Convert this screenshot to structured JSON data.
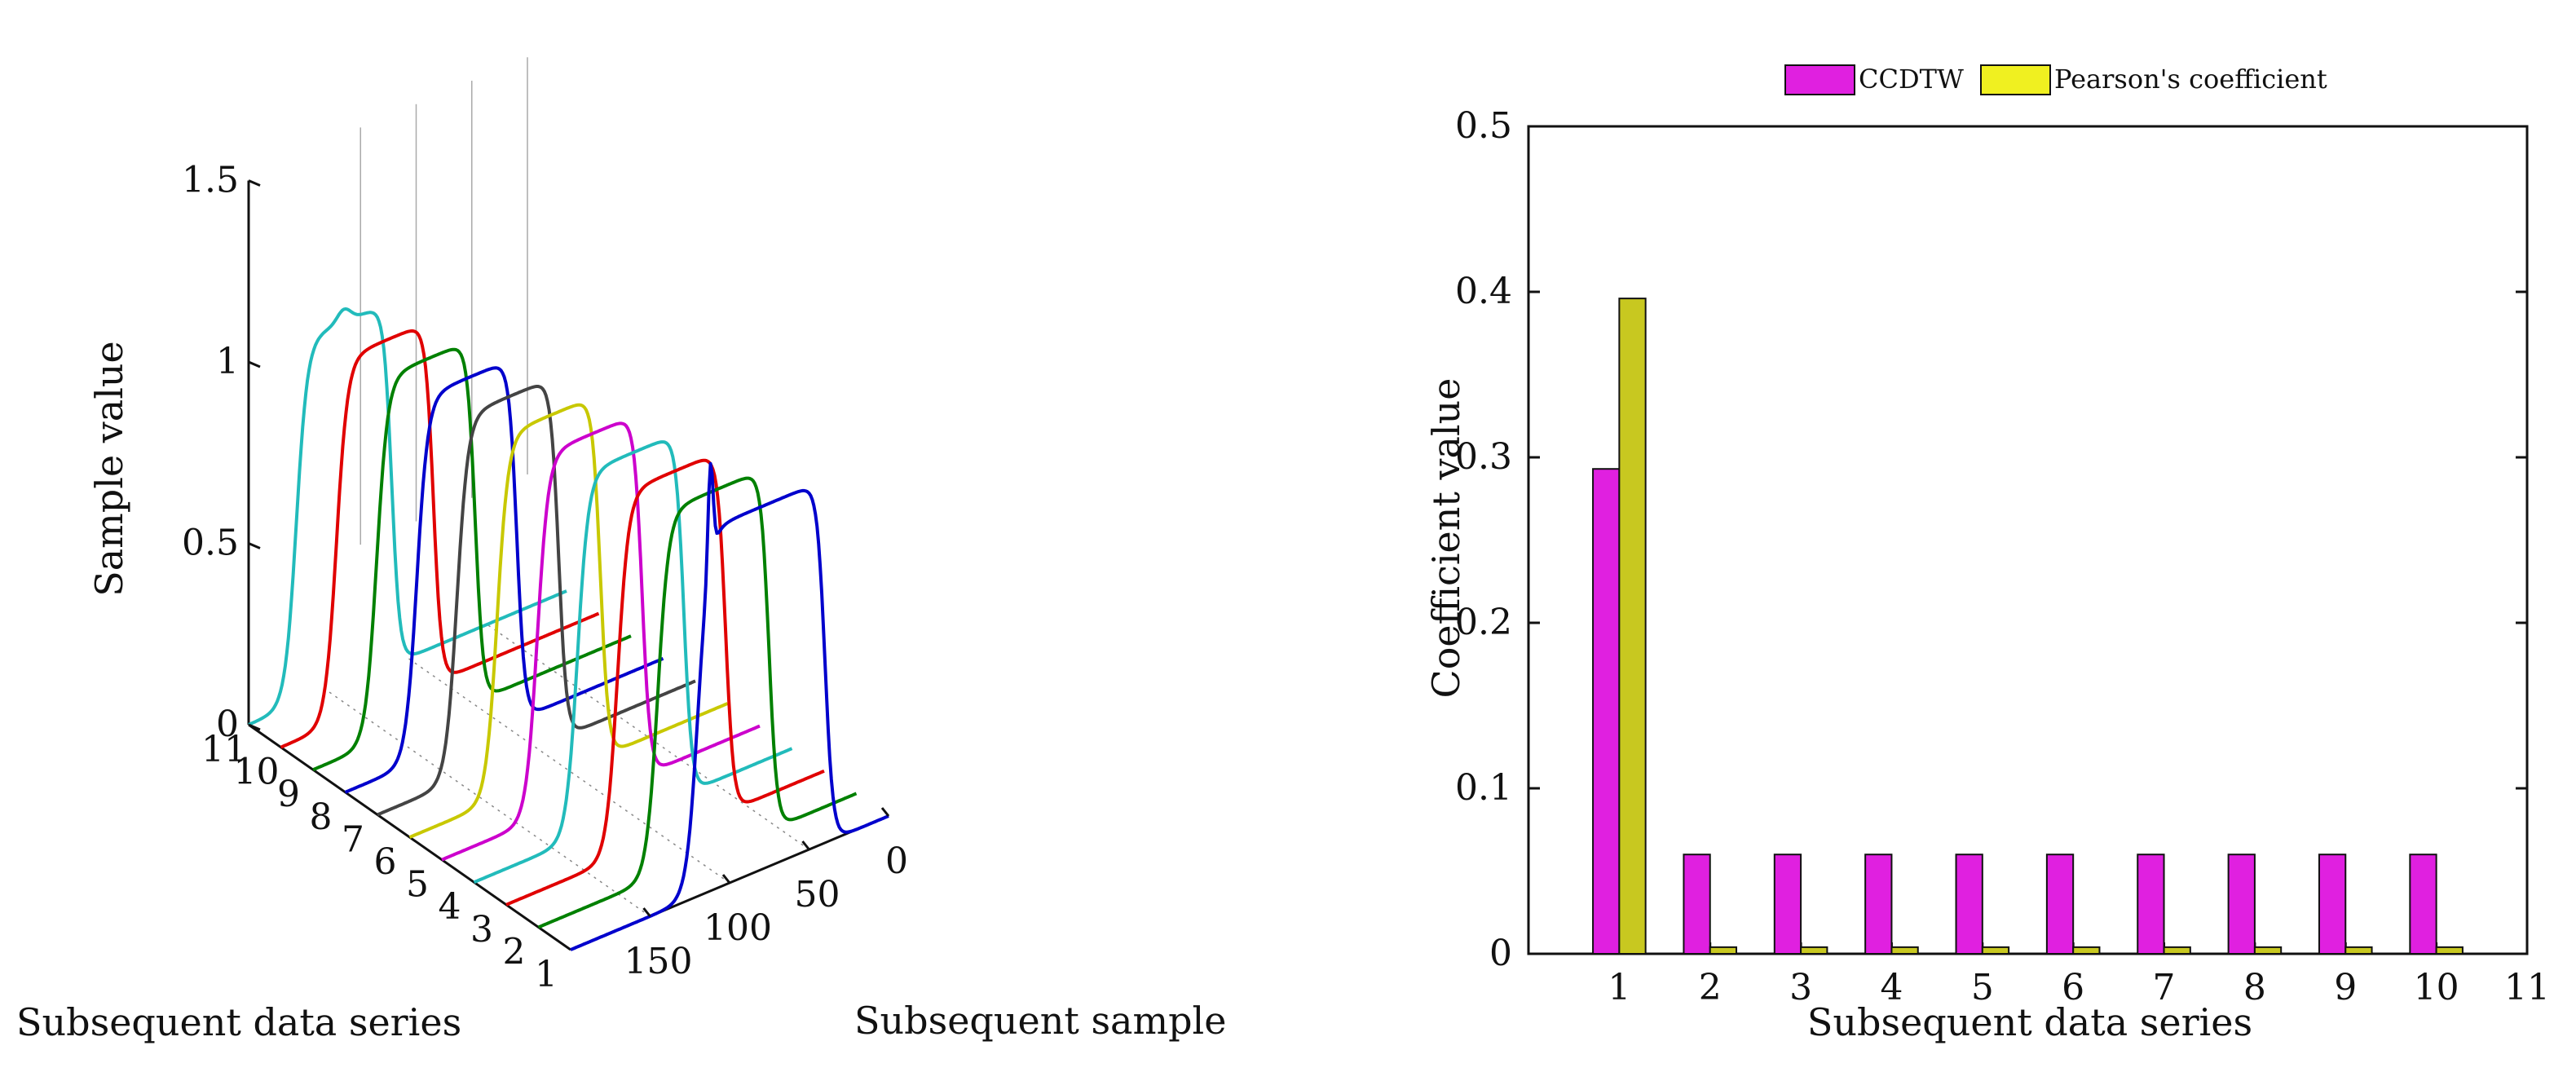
{
  "chart_data": [
    {
      "type": "line",
      "title": "",
      "xlabel": "Subsequent sample",
      "ylabel": "Subsequent data series",
      "zlabel": "Sample value",
      "x_ticks": [
        "0",
        "50",
        "100",
        "150"
      ],
      "y_ticks": [
        "1",
        "2",
        "3",
        "4",
        "5",
        "6",
        "7",
        "8",
        "9",
        "10",
        "11"
      ],
      "z_ticks": [
        "0",
        "0.5",
        "1",
        "1.5"
      ],
      "xlim": [
        0,
        200
      ],
      "ylim": [
        1,
        11
      ],
      "zlim": [
        0,
        1.5
      ],
      "series": [
        {
          "name": "1",
          "rise": 120,
          "fall": 40,
          "color": "#0000cc",
          "spike": true
        },
        {
          "name": "2",
          "rise": 125,
          "fall": 55,
          "color": "#008000"
        },
        {
          "name": "3",
          "rise": 130,
          "fall": 62,
          "color": "#e00000"
        },
        {
          "name": "4",
          "rise": 135,
          "fall": 68,
          "color": "#22bbbb"
        },
        {
          "name": "5",
          "rise": 140,
          "fall": 74,
          "color": "#cc00cc"
        },
        {
          "name": "6",
          "rise": 145,
          "fall": 80,
          "color": "#c8c800"
        },
        {
          "name": "7",
          "rise": 150,
          "fall": 86,
          "color": "#444444"
        },
        {
          "name": "8",
          "rise": 155,
          "fall": 92,
          "color": "#0000cc"
        },
        {
          "name": "9",
          "rise": 160,
          "fall": 98,
          "color": "#008000"
        },
        {
          "name": "10",
          "rise": 165,
          "fall": 104,
          "color": "#e00000"
        },
        {
          "name": "11",
          "rise": 170,
          "fall": 110,
          "color": "#22bbbb",
          "bump": true
        }
      ]
    },
    {
      "type": "bar",
      "title": "",
      "xlabel": "Subsequent data series",
      "ylabel": "Coefficient value",
      "categories": [
        "1",
        "2",
        "3",
        "4",
        "5",
        "6",
        "7",
        "8",
        "9",
        "10"
      ],
      "x_ticks": [
        "1",
        "2",
        "3",
        "4",
        "5",
        "6",
        "7",
        "8",
        "9",
        "10",
        "11"
      ],
      "y_ticks": [
        "0",
        "0.1",
        "0.2",
        "0.3",
        "0.4",
        "0.5"
      ],
      "ylim": [
        0,
        0.5
      ],
      "xlim": [
        0,
        11
      ],
      "legend_position": "top-center",
      "series": [
        {
          "name": "CCDTW",
          "color": "#e020e0",
          "values": [
            0.293,
            0.06,
            0.06,
            0.06,
            0.06,
            0.06,
            0.06,
            0.06,
            0.06,
            0.06
          ]
        },
        {
          "name": "Pearson's coefficient",
          "color": "#c8c820",
          "legend_color": "#f0f020",
          "values": [
            0.396,
            0.004,
            0.004,
            0.004,
            0.004,
            0.004,
            0.004,
            0.004,
            0.004,
            0.004
          ]
        }
      ]
    }
  ]
}
